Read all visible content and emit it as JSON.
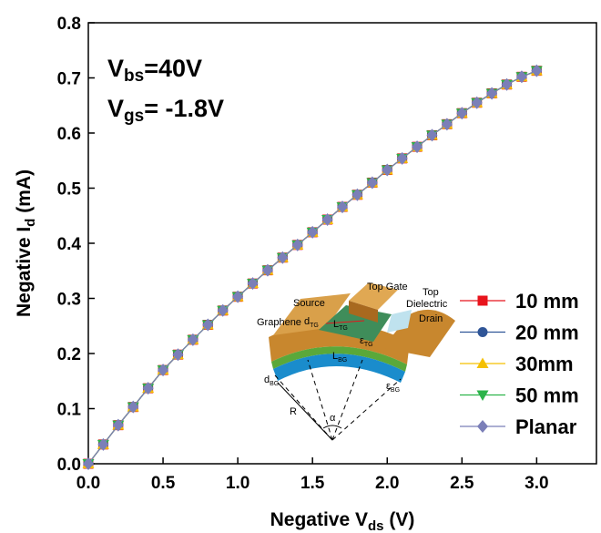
{
  "chart_data": {
    "type": "line",
    "x_label": {
      "main": "Negative V",
      "sub": "ds",
      "tail": " (V)"
    },
    "y_label": {
      "main": "Negative I",
      "sub": "d",
      "tail": " (mA)"
    },
    "annotations": [
      {
        "main": "V",
        "sub": "bs",
        "tail": "=40V"
      },
      {
        "main": "V",
        "sub": "gs",
        "tail": "= -1.8V"
      }
    ],
    "xlim": [
      0,
      3.4
    ],
    "ylim": [
      0,
      0.8
    ],
    "xticks": [
      {
        "value": 0,
        "label": "0.0"
      },
      0.5,
      {
        "value": 1,
        "label": "1.0"
      },
      1.5,
      {
        "value": 2,
        "label": "2.0"
      },
      2.5,
      {
        "value": 3,
        "label": "3.0"
      }
    ],
    "yticks": [
      {
        "value": 0,
        "label": "0.0"
      },
      0.1,
      0.2,
      0.3,
      0.4,
      0.5,
      0.6,
      0.7,
      0.8
    ],
    "x": [
      0,
      0.1,
      0.2,
      0.3,
      0.4,
      0.5,
      0.6,
      0.7,
      0.8,
      0.9,
      1.0,
      1.1,
      1.2,
      1.3,
      1.4,
      1.5,
      1.6,
      1.7,
      1.8,
      1.9,
      2.0,
      2.1,
      2.2,
      2.3,
      2.4,
      2.5,
      2.6,
      2.7,
      2.8,
      2.9,
      3.0
    ],
    "series": [
      {
        "name": "10 mm",
        "color": "#e8141c",
        "marker": "square",
        "values": [
          0,
          0.035,
          0.07,
          0.103,
          0.137,
          0.17,
          0.198,
          0.225,
          0.252,
          0.278,
          0.303,
          0.327,
          0.351,
          0.374,
          0.397,
          0.42,
          0.443,
          0.466,
          0.488,
          0.51,
          0.533,
          0.554,
          0.575,
          0.596,
          0.616,
          0.636,
          0.655,
          0.672,
          0.688,
          0.702,
          0.713
        ]
      },
      {
        "name": "20 mm",
        "color": "#2f5597",
        "marker": "circle",
        "values": [
          0,
          0.035,
          0.07,
          0.103,
          0.137,
          0.17,
          0.198,
          0.225,
          0.252,
          0.278,
          0.303,
          0.327,
          0.351,
          0.374,
          0.397,
          0.42,
          0.443,
          0.466,
          0.488,
          0.51,
          0.533,
          0.554,
          0.575,
          0.596,
          0.616,
          0.636,
          0.655,
          0.672,
          0.688,
          0.702,
          0.713
        ]
      },
      {
        "name": "30mm",
        "color": "#f5c000",
        "marker": "triangle-up",
        "values": [
          0,
          0.035,
          0.07,
          0.103,
          0.137,
          0.17,
          0.198,
          0.225,
          0.252,
          0.278,
          0.303,
          0.327,
          0.351,
          0.374,
          0.397,
          0.42,
          0.443,
          0.466,
          0.488,
          0.51,
          0.533,
          0.554,
          0.575,
          0.596,
          0.616,
          0.636,
          0.655,
          0.672,
          0.688,
          0.702,
          0.713
        ]
      },
      {
        "name": "50 mm",
        "color": "#2cb34a",
        "marker": "triangle-down",
        "values": [
          0,
          0.035,
          0.07,
          0.103,
          0.137,
          0.17,
          0.198,
          0.225,
          0.252,
          0.278,
          0.303,
          0.327,
          0.351,
          0.374,
          0.397,
          0.42,
          0.443,
          0.466,
          0.488,
          0.51,
          0.533,
          0.554,
          0.575,
          0.596,
          0.616,
          0.636,
          0.655,
          0.672,
          0.688,
          0.702,
          0.713
        ]
      },
      {
        "name": "Planar",
        "color": "#7b7fb8",
        "marker": "diamond",
        "values": [
          0,
          0.035,
          0.07,
          0.103,
          0.137,
          0.17,
          0.198,
          0.225,
          0.252,
          0.278,
          0.303,
          0.327,
          0.351,
          0.374,
          0.397,
          0.42,
          0.443,
          0.466,
          0.488,
          0.51,
          0.533,
          0.554,
          0.575,
          0.596,
          0.616,
          0.636,
          0.655,
          0.672,
          0.688,
          0.702,
          0.713
        ]
      }
    ],
    "inset_labels": [
      {
        "text": "Top Gate"
      },
      {
        "text": "Top"
      },
      {
        "text": "Dielectric"
      },
      {
        "text": "Source"
      },
      {
        "text": "Drain"
      },
      {
        "text": "Graphene"
      },
      {
        "text": "d",
        "sub": "TG"
      },
      {
        "text": "L",
        "sub": "TG"
      },
      {
        "text": "ε",
        "sub": "TG"
      },
      {
        "text": "L",
        "sub": "BG"
      },
      {
        "text": "d",
        "sub": "BG"
      },
      {
        "text": "ε",
        "sub": "BG"
      },
      {
        "text": "R"
      },
      {
        "text": "α"
      }
    ]
  }
}
